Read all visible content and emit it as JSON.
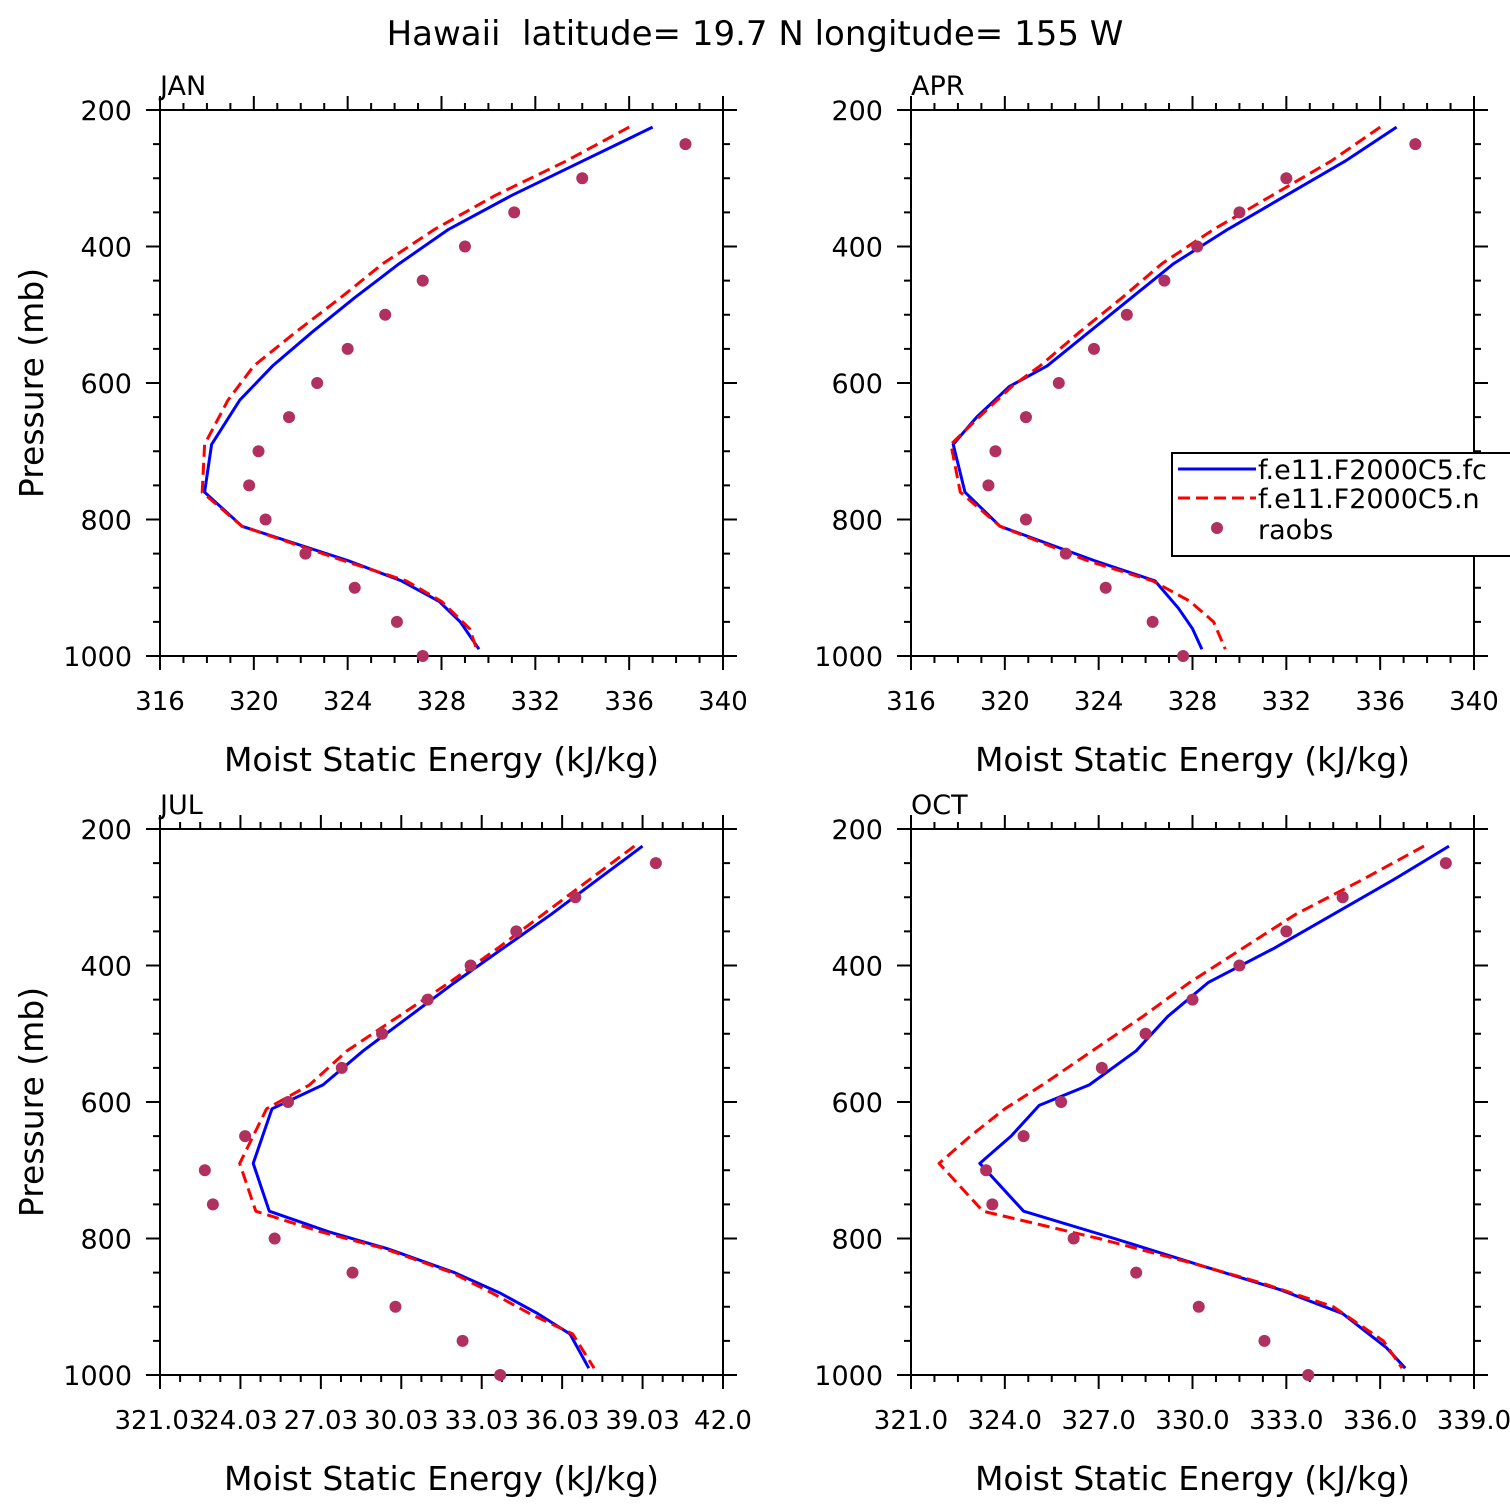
{
  "title": "Hawaii  latitude= 19.7 N longitude= 155 W",
  "legend": {
    "entries": [
      "f.e11.F2000C5.fc",
      "f.e11.F2000C5.n",
      "raobs"
    ],
    "colors": [
      "#0000ff",
      "#ff0000",
      "#b03060"
    ]
  },
  "chart_data": [
    {
      "type": "line",
      "panel": "JAN",
      "xlabel": "Moist Static Energy (kJ/kg)",
      "ylabel": "Pressure (mb)",
      "xlim": [
        316,
        340
      ],
      "ylim": [
        1000,
        200
      ],
      "x_ticks": [
        "316",
        "320",
        "324",
        "328",
        "332",
        "336",
        "340"
      ],
      "y_ticks": [
        "200",
        "400",
        "600",
        "800",
        "1000"
      ],
      "legend": false,
      "series": [
        {
          "name": "f.e11.F2000C5.fc",
          "color": "#0000ff",
          "style": "solid",
          "points": [
            [
              337.0,
              225
            ],
            [
              334.0,
              275
            ],
            [
              331.0,
              325
            ],
            [
              328.3,
              375
            ],
            [
              326.2,
              425
            ],
            [
              324.3,
              475
            ],
            [
              322.5,
              525
            ],
            [
              320.8,
              575
            ],
            [
              319.4,
              625
            ],
            [
              318.2,
              690
            ],
            [
              317.9,
              760
            ],
            [
              319.5,
              810
            ],
            [
              324.0,
              860
            ],
            [
              326.3,
              890
            ],
            [
              327.9,
              920
            ],
            [
              328.8,
              950
            ],
            [
              329.6,
              990
            ]
          ]
        },
        {
          "name": "f.e11.F2000C5.n",
          "color": "#ff0000",
          "style": "dashed",
          "points": [
            [
              336.0,
              225
            ],
            [
              333.3,
              275
            ],
            [
              330.3,
              325
            ],
            [
              327.7,
              375
            ],
            [
              325.5,
              425
            ],
            [
              323.7,
              475
            ],
            [
              321.8,
              525
            ],
            [
              320.0,
              575
            ],
            [
              318.9,
              625
            ],
            [
              317.9,
              690
            ],
            [
              317.8,
              760
            ],
            [
              319.5,
              810
            ],
            [
              323.8,
              860
            ],
            [
              326.5,
              890
            ],
            [
              328.0,
              920
            ],
            [
              329.2,
              960
            ],
            [
              329.5,
              990
            ]
          ]
        }
      ],
      "markers": {
        "name": "raobs",
        "color": "#b03060",
        "points": [
          [
            338.4,
            250
          ],
          [
            334.0,
            300
          ],
          [
            331.1,
            350
          ],
          [
            329.0,
            400
          ],
          [
            327.2,
            450
          ],
          [
            325.6,
            500
          ],
          [
            324.0,
            550
          ],
          [
            322.7,
            600
          ],
          [
            321.5,
            650
          ],
          [
            320.2,
            700
          ],
          [
            319.8,
            750
          ],
          [
            320.5,
            800
          ],
          [
            322.2,
            850
          ],
          [
            324.3,
            900
          ],
          [
            326.1,
            950
          ],
          [
            327.2,
            1000
          ]
        ]
      }
    },
    {
      "type": "line",
      "panel": "APR",
      "xlabel": "Moist Static Energy (kJ/kg)",
      "ylabel": "",
      "xlim": [
        316,
        340
      ],
      "ylim": [
        1000,
        200
      ],
      "x_ticks": [
        "316",
        "320",
        "324",
        "328",
        "332",
        "336",
        "340"
      ],
      "y_ticks": [
        "200",
        "400",
        "600",
        "800",
        "1000"
      ],
      "legend": true,
      "series": [
        {
          "name": "f.e11.F2000C5.fc",
          "color": "#0000ff",
          "style": "solid",
          "points": [
            [
              336.7,
              225
            ],
            [
              334.5,
              275
            ],
            [
              332.0,
              325
            ],
            [
              329.5,
              375
            ],
            [
              327.2,
              425
            ],
            [
              325.4,
              475
            ],
            [
              323.6,
              525
            ],
            [
              321.8,
              575
            ],
            [
              320.2,
              605
            ],
            [
              318.8,
              650
            ],
            [
              317.8,
              690
            ],
            [
              318.3,
              760
            ],
            [
              319.8,
              810
            ],
            [
              323.8,
              860
            ],
            [
              326.4,
              890
            ],
            [
              327.4,
              930
            ],
            [
              328.0,
              960
            ],
            [
              328.4,
              990
            ]
          ]
        },
        {
          "name": "f.e11.F2000C5.n",
          "color": "#ff0000",
          "style": "dashed",
          "points": [
            [
              336.0,
              225
            ],
            [
              333.9,
              275
            ],
            [
              331.4,
              325
            ],
            [
              328.9,
              375
            ],
            [
              326.7,
              425
            ],
            [
              325.0,
              475
            ],
            [
              323.2,
              525
            ],
            [
              321.5,
              575
            ],
            [
              320.3,
              605
            ],
            [
              318.9,
              650
            ],
            [
              317.7,
              690
            ],
            [
              318.1,
              760
            ],
            [
              319.8,
              810
            ],
            [
              323.5,
              860
            ],
            [
              326.3,
              890
            ],
            [
              327.9,
              920
            ],
            [
              328.9,
              950
            ],
            [
              329.4,
              990
            ]
          ]
        }
      ],
      "markers": {
        "name": "raobs",
        "color": "#b03060",
        "points": [
          [
            337.5,
            250
          ],
          [
            332.0,
            300
          ],
          [
            330.0,
            350
          ],
          [
            328.2,
            400
          ],
          [
            326.8,
            450
          ],
          [
            325.2,
            500
          ],
          [
            323.8,
            550
          ],
          [
            322.3,
            600
          ],
          [
            320.9,
            650
          ],
          [
            319.6,
            700
          ],
          [
            319.3,
            750
          ],
          [
            320.9,
            800
          ],
          [
            322.6,
            850
          ],
          [
            324.3,
            900
          ],
          [
            326.3,
            950
          ],
          [
            327.6,
            1000
          ]
        ]
      }
    },
    {
      "type": "line",
      "panel": "JUL",
      "xlabel": "Moist Static Energy (kJ/kg)",
      "ylabel": "Pressure (mb)",
      "xlim": [
        321.03,
        342.0
      ],
      "ylim": [
        1000,
        200
      ],
      "x_ticks": [
        "321.03",
        "24.03",
        "27.03",
        "30.03",
        "33.03",
        "36.03",
        "39.03",
        "42.0"
      ],
      "y_ticks": [
        "200",
        "400",
        "600",
        "800",
        "1000"
      ],
      "legend": false,
      "series": [
        {
          "name": "f.e11.F2000C5.fc",
          "color": "#0000ff",
          "style": "solid",
          "points": [
            [
              339.0,
              225
            ],
            [
              337.3,
              275
            ],
            [
              335.6,
              325
            ],
            [
              333.8,
              375
            ],
            [
              332.0,
              425
            ],
            [
              330.3,
              475
            ],
            [
              328.6,
              525
            ],
            [
              327.1,
              575
            ],
            [
              325.2,
              610
            ],
            [
              324.5,
              690
            ],
            [
              325.1,
              760
            ],
            [
              327.3,
              790
            ],
            [
              329.5,
              815
            ],
            [
              332.0,
              850
            ],
            [
              333.7,
              880
            ],
            [
              335.1,
              910
            ],
            [
              336.3,
              940
            ],
            [
              337.0,
              990
            ]
          ]
        },
        {
          "name": "f.e11.F2000C5.n",
          "color": "#ff0000",
          "style": "dashed",
          "points": [
            [
              338.7,
              225
            ],
            [
              337.0,
              275
            ],
            [
              335.3,
              325
            ],
            [
              333.6,
              375
            ],
            [
              331.8,
              425
            ],
            [
              329.9,
              475
            ],
            [
              328.0,
              525
            ],
            [
              326.6,
              575
            ],
            [
              325.0,
              610
            ],
            [
              324.0,
              690
            ],
            [
              324.6,
              760
            ],
            [
              327.0,
              790
            ],
            [
              329.4,
              815
            ],
            [
              331.9,
              850
            ],
            [
              333.4,
              880
            ],
            [
              334.8,
              910
            ],
            [
              336.4,
              940
            ],
            [
              337.2,
              990
            ]
          ]
        }
      ],
      "markers": {
        "name": "raobs",
        "color": "#b03060",
        "points": [
          [
            339.5,
            250
          ],
          [
            336.5,
            300
          ],
          [
            334.3,
            350
          ],
          [
            332.6,
            400
          ],
          [
            331.0,
            450
          ],
          [
            329.3,
            500
          ],
          [
            327.8,
            550
          ],
          [
            325.8,
            600
          ],
          [
            324.2,
            650
          ],
          [
            322.7,
            700
          ],
          [
            323.0,
            750
          ],
          [
            325.3,
            800
          ],
          [
            328.2,
            850
          ],
          [
            329.8,
            900
          ],
          [
            332.3,
            950
          ],
          [
            333.7,
            1000
          ]
        ]
      }
    },
    {
      "type": "line",
      "panel": "OCT",
      "xlabel": "Moist Static Energy (kJ/kg)",
      "ylabel": "",
      "xlim": [
        321.0,
        339.0
      ],
      "ylim": [
        1000,
        200
      ],
      "x_ticks": [
        "321.0",
        "324.0",
        "327.0",
        "330.0",
        "333.0",
        "336.0",
        "339.0"
      ],
      "y_ticks": [
        "200",
        "400",
        "600",
        "800",
        "1000"
      ],
      "legend": false,
      "series": [
        {
          "name": "f.e11.F2000C5.fc",
          "color": "#0000ff",
          "style": "solid",
          "points": [
            [
              338.2,
              225
            ],
            [
              336.4,
              275
            ],
            [
              334.5,
              325
            ],
            [
              332.6,
              375
            ],
            [
              330.5,
              425
            ],
            [
              329.2,
              475
            ],
            [
              328.2,
              525
            ],
            [
              326.7,
              575
            ],
            [
              325.1,
              605
            ],
            [
              324.2,
              650
            ],
            [
              323.2,
              690
            ],
            [
              324.6,
              760
            ],
            [
              327.5,
              800
            ],
            [
              330.3,
              840
            ],
            [
              332.8,
              875
            ],
            [
              334.8,
              910
            ],
            [
              336.2,
              960
            ],
            [
              336.8,
              990
            ]
          ]
        },
        {
          "name": "f.e11.F2000C5.n",
          "color": "#ff0000",
          "style": "dashed",
          "points": [
            [
              337.4,
              225
            ],
            [
              335.4,
              275
            ],
            [
              333.3,
              325
            ],
            [
              331.6,
              375
            ],
            [
              329.9,
              425
            ],
            [
              328.4,
              475
            ],
            [
              326.8,
              525
            ],
            [
              325.2,
              575
            ],
            [
              324.0,
              610
            ],
            [
              322.9,
              650
            ],
            [
              321.9,
              690
            ],
            [
              323.3,
              760
            ],
            [
              327.0,
              800
            ],
            [
              329.9,
              835
            ],
            [
              332.2,
              865
            ],
            [
              334.5,
              900
            ],
            [
              336.1,
              950
            ],
            [
              336.7,
              990
            ]
          ]
        }
      ],
      "markers": {
        "name": "raobs",
        "color": "#b03060",
        "points": [
          [
            338.1,
            250
          ],
          [
            334.8,
            300
          ],
          [
            333.0,
            350
          ],
          [
            331.5,
            400
          ],
          [
            330.0,
            450
          ],
          [
            328.5,
            500
          ],
          [
            327.1,
            550
          ],
          [
            325.8,
            600
          ],
          [
            324.6,
            650
          ],
          [
            323.4,
            700
          ],
          [
            323.6,
            750
          ],
          [
            326.2,
            800
          ],
          [
            328.2,
            850
          ],
          [
            330.2,
            900
          ],
          [
            332.3,
            950
          ],
          [
            333.7,
            1000
          ]
        ]
      }
    }
  ]
}
